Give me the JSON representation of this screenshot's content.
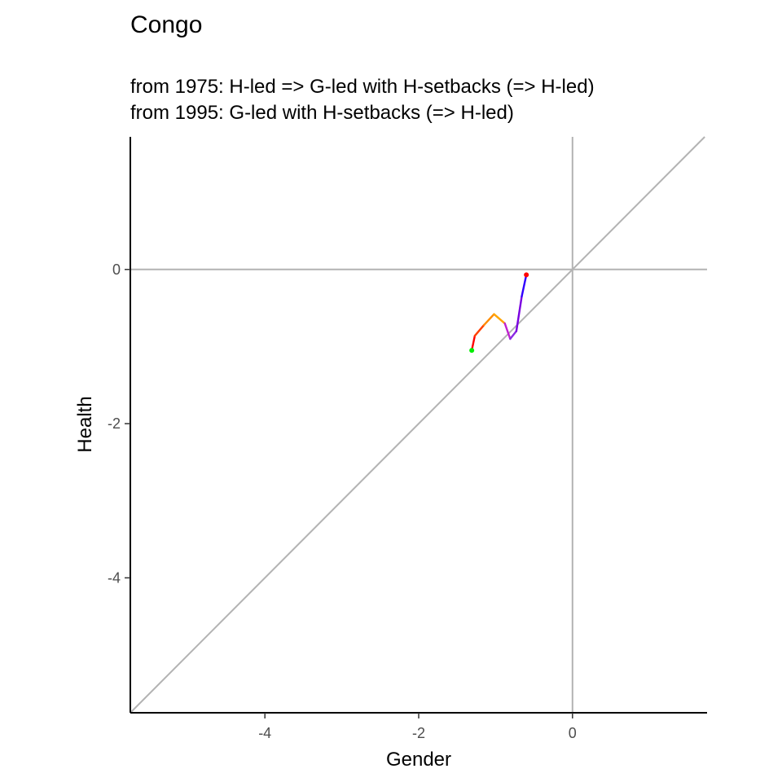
{
  "chart_data": {
    "type": "line",
    "title": "Congo",
    "subtitle_lines": [
      "from 1975:  H-led => G-led with H-setbacks (=> H-led)",
      "from 1995:  G-led with H-setbacks (=> H-led)"
    ],
    "xlabel": "Gender",
    "ylabel": "Health",
    "xlim": [
      -5.75,
      1.75
    ],
    "ylim": [
      -5.75,
      1.72
    ],
    "xticks": [
      -4,
      -2,
      0
    ],
    "yticks": [
      0,
      -2,
      -4
    ],
    "reference_lines": [
      {
        "kind": "hline",
        "value": 0
      },
      {
        "kind": "vline",
        "value": 0
      },
      {
        "kind": "diagonal",
        "slope": 1,
        "intercept": 0
      }
    ],
    "reference_color": "#b3b3b3",
    "grid": false,
    "series": [
      {
        "points": [
          {
            "x": -1.31,
            "y": -1.05,
            "color": "#ff0000"
          },
          {
            "x": -1.27,
            "y": -0.86,
            "color": "#ff4000"
          },
          {
            "x": -1.15,
            "y": -0.72,
            "color": "#ff8c00"
          },
          {
            "x": -1.02,
            "y": -0.58,
            "color": "#ffa500"
          },
          {
            "x": -0.88,
            "y": -0.7,
            "color": "#c020d0"
          },
          {
            "x": -0.81,
            "y": -0.9,
            "color": "#8a2be2"
          },
          {
            "x": -0.73,
            "y": -0.8,
            "color": "#7a00e0"
          },
          {
            "x": -0.66,
            "y": -0.35,
            "color": "#3000ff"
          },
          {
            "x": -0.6,
            "y": -0.07,
            "color": "#0000ff"
          }
        ],
        "start_marker_color": "#00ee00",
        "end_marker_color": "#ff0000"
      }
    ]
  }
}
